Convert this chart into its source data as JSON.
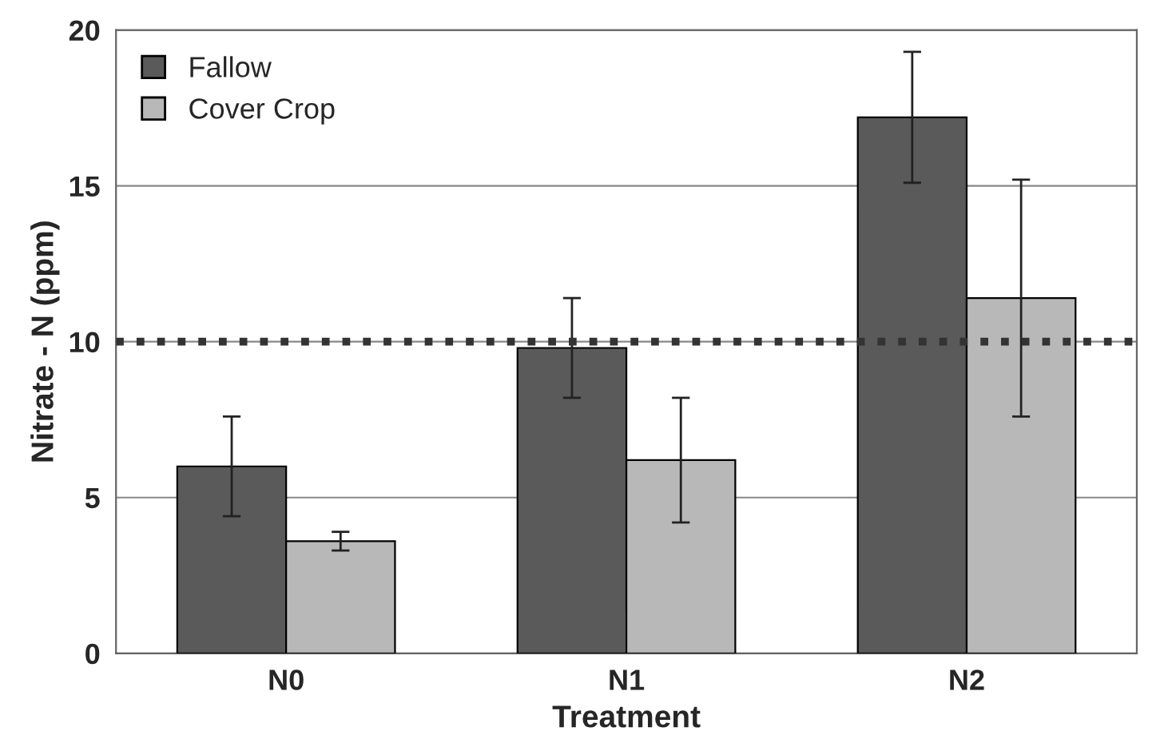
{
  "chart_data": {
    "type": "bar",
    "xlabel": "Treatment",
    "ylabel": "Nitrate - N (ppm)",
    "categories": [
      "N0",
      "N1",
      "N2"
    ],
    "series": [
      {
        "name": "Fallow",
        "color": "#5a5a5a",
        "values": [
          6.0,
          9.8,
          17.2
        ],
        "errors": [
          1.6,
          1.6,
          2.1
        ]
      },
      {
        "name": "Cover Crop",
        "color": "#b8b8b8",
        "values": [
          3.6,
          6.2,
          11.4
        ],
        "errors": [
          0.3,
          2.0,
          3.8
        ]
      }
    ],
    "ylim": [
      0,
      20
    ],
    "yticks": [
      0,
      5,
      10,
      15,
      20
    ],
    "grid": "y",
    "legend": "top left",
    "ref_lines": [
      {
        "axis": "y",
        "value": 10,
        "color": "#333333",
        "line_style": "dotted"
      }
    ]
  }
}
